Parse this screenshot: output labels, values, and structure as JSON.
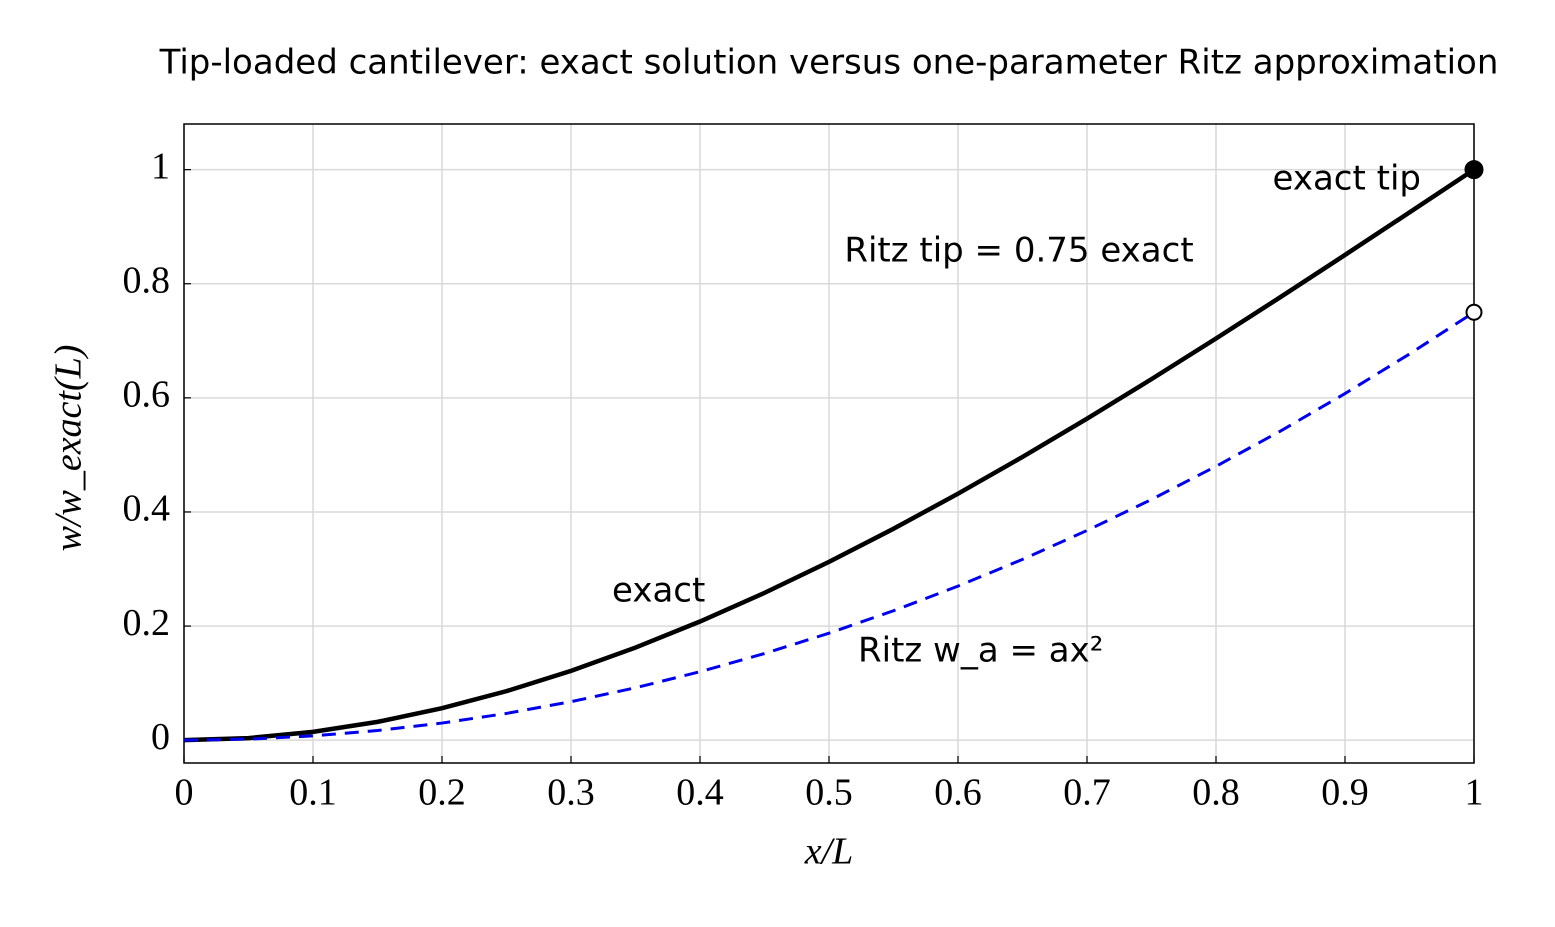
{
  "chart_data": {
    "type": "line",
    "title": "Tip-loaded cantilever: exact solution versus one-parameter Ritz approximation",
    "x_label": "x/L",
    "y_label": "w/w_exact(L)",
    "x": [
      0,
      0.05,
      0.1,
      0.15,
      0.2,
      0.25,
      0.3,
      0.35,
      0.4,
      0.45,
      0.5,
      0.55,
      0.6,
      0.65,
      0.7,
      0.75,
      0.8,
      0.85,
      0.9,
      0.95,
      1
    ],
    "series": [
      {
        "name": "exact",
        "color": "#000000",
        "dash": false,
        "values": [
          0,
          0.0036875,
          0.0145,
          0.0320625,
          0.056,
          0.0859375,
          0.1215,
          0.1623125,
          0.208,
          0.2581875,
          0.3125,
          0.3705625,
          0.432,
          0.4964375,
          0.5635,
          0.6328125,
          0.704,
          0.7766875,
          0.8505,
          0.9250625,
          1
        ]
      },
      {
        "name": "Ritz w_a = ax²",
        "color": "#0000ee",
        "dash": true,
        "values": [
          0,
          0.001875,
          0.0075,
          0.016875,
          0.03,
          0.046875,
          0.0675,
          0.091875,
          0.12,
          0.151875,
          0.1875,
          0.226875,
          0.27,
          0.316875,
          0.3675,
          0.421875,
          0.48,
          0.541875,
          0.6075,
          0.676875,
          0.75
        ]
      }
    ],
    "annotations": [
      "exact tip",
      "Ritz tip = 0.75 exact"
    ],
    "xlim": [
      0,
      1
    ],
    "ylim": [
      -0.04,
      1.08
    ],
    "xticks": [
      0,
      0.1,
      0.2,
      0.3,
      0.4,
      0.5,
      0.6,
      0.7,
      0.8,
      0.9,
      1
    ],
    "yticks": [
      0,
      0.2,
      0.4,
      0.6,
      0.8,
      1
    ],
    "grid": true
  }
}
